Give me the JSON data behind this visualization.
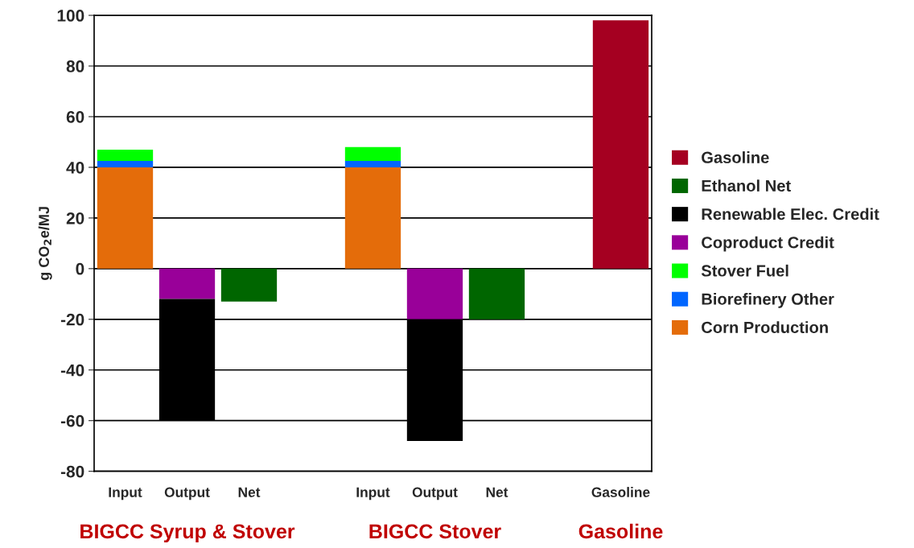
{
  "chart_data": {
    "type": "bar",
    "stacked": true,
    "ylabel": "g CO$_{2}$e/MJ",
    "categories": [
      "Input",
      "Output",
      "Net",
      null,
      "Input",
      "Output",
      "Net",
      null,
      "Gasoline"
    ],
    "series": [
      {
        "name": "Corn Production",
        "color": "#e46c0a",
        "values": [
          40,
          null,
          null,
          null,
          40,
          null,
          null,
          null,
          null
        ]
      },
      {
        "name": "Biorefinery Other",
        "color": "#0066ff",
        "values": [
          2.5,
          null,
          null,
          null,
          2.5,
          null,
          null,
          null,
          null
        ]
      },
      {
        "name": "Stover Fuel",
        "color": "#00ff00",
        "values": [
          4.5,
          null,
          null,
          null,
          5.5,
          null,
          null,
          null,
          null
        ]
      },
      {
        "name": "Coproduct Credit",
        "color": "#990099",
        "values": [
          null,
          -12,
          null,
          null,
          null,
          -20,
          null,
          null,
          null
        ]
      },
      {
        "name": "Renewable Elec. Credit",
        "color": "#000000",
        "values": [
          null,
          -48,
          null,
          null,
          null,
          -48,
          null,
          null,
          null
        ]
      },
      {
        "name": "Ethanol Net",
        "color": "#006600",
        "values": [
          null,
          null,
          -13,
          null,
          null,
          null,
          -20,
          null,
          null
        ]
      },
      {
        "name": "Gasoline",
        "color": "#a50021",
        "values": [
          null,
          null,
          null,
          null,
          null,
          null,
          null,
          null,
          98
        ]
      }
    ],
    "ylim": [
      -80,
      100
    ],
    "yticks": [
      -80,
      -60,
      -40,
      -20,
      0,
      20,
      40,
      60,
      80,
      100
    ],
    "grid": "y",
    "legend": "right",
    "annotations": [
      "BIGCC Syrup & Stover",
      "BIGCC Stover",
      "Gasoline"
    ]
  }
}
